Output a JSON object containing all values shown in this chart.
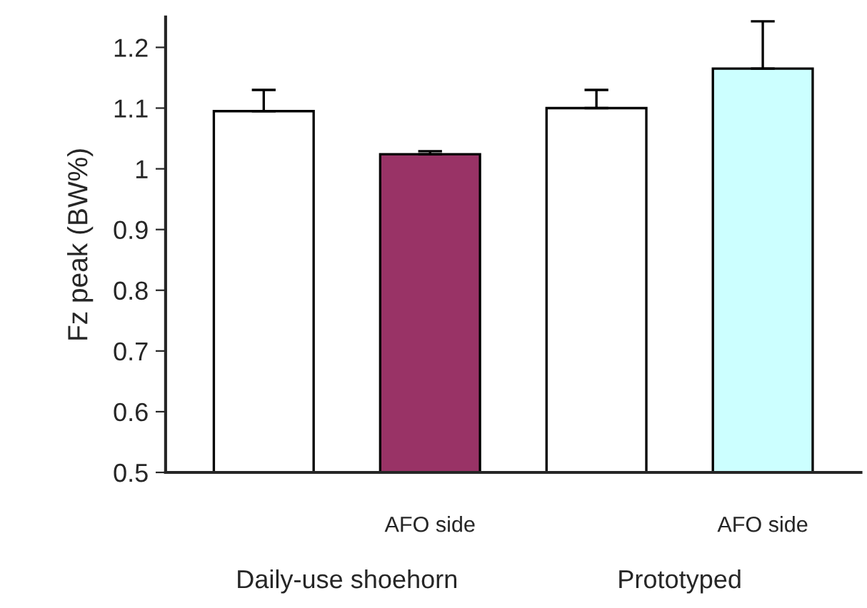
{
  "chart_data": {
    "type": "bar",
    "ylabel": "Fz peak (BW%)",
    "categories": [
      null,
      "AFO side",
      null,
      "AFO side"
    ],
    "values": [
      1.095,
      1.024,
      1.1,
      1.165
    ],
    "errors": [
      [
        1.095,
        1.13
      ],
      [
        1.024,
        1.029
      ],
      [
        1.1,
        1.13
      ],
      [
        1.165,
        1.243
      ]
    ],
    "colors": [
      "#ffffff",
      "#993366",
      "#ffffff",
      "#ccffff"
    ],
    "ylim": [
      0.5,
      1.25
    ],
    "yticks": [
      0.5,
      0.6,
      0.7,
      0.8,
      0.9,
      1,
      1.1,
      1.2
    ],
    "annotations": [
      "Daily-use shoehorn",
      "Prototyped"
    ],
    "grid": false,
    "legend": false
  }
}
